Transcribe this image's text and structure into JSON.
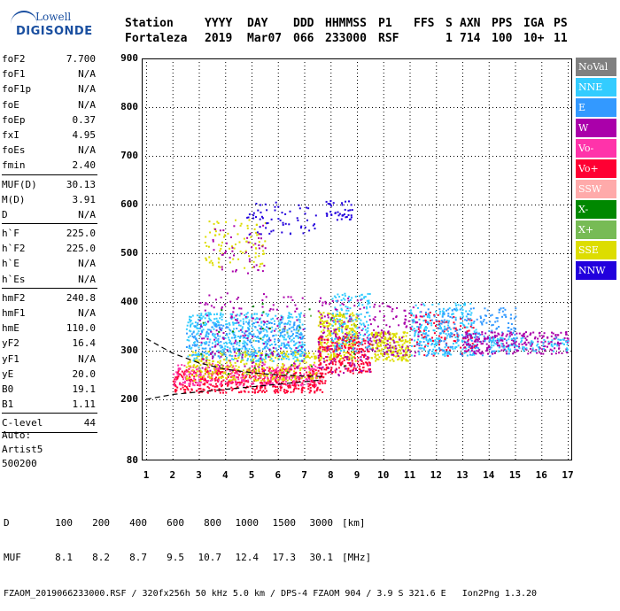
{
  "logo": {
    "top": "Lowell",
    "brand": "DIGISONDE"
  },
  "header": {
    "labels": [
      "Station",
      "YYYY",
      "DAY",
      "DDD",
      "HHMMSS",
      "P1",
      "FFS",
      "S",
      "AXN",
      "PPS",
      "IGA",
      "PS"
    ],
    "values": [
      "Fortaleza",
      "2019",
      "Mar07",
      "066",
      "233000",
      "RSF",
      "",
      "1",
      "714",
      "100",
      "10+",
      "11"
    ]
  },
  "params_group1": [
    {
      "label": "foF2",
      "value": "7.700"
    },
    {
      "label": "foF1",
      "value": "N/A"
    },
    {
      "label": "foF1p",
      "value": "N/A"
    },
    {
      "label": "foE",
      "value": "N/A"
    },
    {
      "label": "foEp",
      "value": "0.37"
    },
    {
      "label": "fxI",
      "value": "4.95"
    },
    {
      "label": "foEs",
      "value": "N/A"
    },
    {
      "label": "fmin",
      "value": "2.40"
    }
  ],
  "params_group2": [
    {
      "label": "MUF(D)",
      "value": "30.13"
    },
    {
      "label": "M(D)",
      "value": "3.91"
    },
    {
      "label": "D",
      "value": "N/A"
    }
  ],
  "params_group3": [
    {
      "label": "h`F",
      "value": "225.0"
    },
    {
      "label": "h`F2",
      "value": "225.0"
    },
    {
      "label": "h`E",
      "value": "N/A"
    },
    {
      "label": "h`Es",
      "value": "N/A"
    }
  ],
  "params_group4": [
    {
      "label": "hmF2",
      "value": "240.8"
    },
    {
      "label": "hmF1",
      "value": "N/A"
    },
    {
      "label": "hmE",
      "value": "110.0"
    },
    {
      "label": "yF2",
      "value": "16.4"
    },
    {
      "label": "yF1",
      "value": "N/A"
    },
    {
      "label": "yE",
      "value": "20.0"
    },
    {
      "label": "B0",
      "value": "19.1"
    },
    {
      "label": "B1",
      "value": "1.11"
    }
  ],
  "clevel": {
    "label": "C-level",
    "value": "44"
  },
  "auto": [
    "Auto:",
    "Artist5",
    "500200"
  ],
  "legend": [
    {
      "name": "NoVal",
      "color": "#808080"
    },
    {
      "name": "NNE",
      "color": "#33ccff"
    },
    {
      "name": "E",
      "color": "#3399ff"
    },
    {
      "name": "W",
      "color": "#aa00aa"
    },
    {
      "name": "Vo-",
      "color": "#ff33aa"
    },
    {
      "name": "Vo+",
      "color": "#ff0033"
    },
    {
      "name": "SSW",
      "color": "#ffaaaa"
    },
    {
      "name": "X-",
      "color": "#008800"
    },
    {
      "name": "X+",
      "color": "#77bb55"
    },
    {
      "name": "SSE",
      "color": "#dddd00"
    },
    {
      "name": "NNW",
      "color": "#2200dd"
    }
  ],
  "chart_data": {
    "type": "scatter",
    "xlim": [
      1,
      17
    ],
    "ylim": [
      80,
      900
    ],
    "x_ticks": [
      "1",
      "2",
      "3",
      "4",
      "5",
      "6",
      "7",
      "8",
      "9",
      "10",
      "11",
      "12",
      "13",
      "14",
      "15",
      "16",
      "17"
    ],
    "y_ticks": [
      "900",
      "800",
      "700",
      "600",
      "500",
      "400",
      "300",
      "200",
      "80"
    ],
    "clusters": [
      {
        "sig": "Vo+",
        "x": [
          2.0,
          7.8
        ],
        "y": [
          215,
          265
        ],
        "n": 520
      },
      {
        "sig": "Vo-",
        "x": [
          2.0,
          7.5
        ],
        "y": [
          230,
          275
        ],
        "n": 260
      },
      {
        "sig": "SSE",
        "x": [
          2.5,
          7.5
        ],
        "y": [
          240,
          300
        ],
        "n": 320
      },
      {
        "sig": "NNE",
        "x": [
          2.5,
          7.0
        ],
        "y": [
          280,
          380
        ],
        "n": 520
      },
      {
        "sig": "E",
        "x": [
          2.5,
          7.0
        ],
        "y": [
          290,
          360
        ],
        "n": 220
      },
      {
        "sig": "W",
        "x": [
          3.0,
          7.0
        ],
        "y": [
          260,
          420
        ],
        "n": 160
      },
      {
        "sig": "SSE",
        "x": [
          3.2,
          5.5
        ],
        "y": [
          470,
          570
        ],
        "n": 90
      },
      {
        "sig": "W",
        "x": [
          3.5,
          5.5
        ],
        "y": [
          460,
          560
        ],
        "n": 45
      },
      {
        "sig": "NNW",
        "x": [
          4.8,
          7.5
        ],
        "y": [
          540,
          610
        ],
        "n": 60
      },
      {
        "sig": "SSE",
        "x": [
          7.5,
          9.0
        ],
        "y": [
          280,
          380
        ],
        "n": 280
      },
      {
        "sig": "Vo+",
        "x": [
          7.5,
          9.5
        ],
        "y": [
          255,
          330
        ],
        "n": 230
      },
      {
        "sig": "W",
        "x": [
          7.5,
          9.5
        ],
        "y": [
          250,
          410
        ],
        "n": 150
      },
      {
        "sig": "NNE",
        "x": [
          8.0,
          9.5
        ],
        "y": [
          300,
          420
        ],
        "n": 140
      },
      {
        "sig": "NNW",
        "x": [
          7.8,
          8.8
        ],
        "y": [
          570,
          610
        ],
        "n": 40
      },
      {
        "sig": "SSE",
        "x": [
          9.5,
          11.0
        ],
        "y": [
          280,
          340
        ],
        "n": 210
      },
      {
        "sig": "W",
        "x": [
          9.5,
          11.5
        ],
        "y": [
          290,
          400
        ],
        "n": 120
      },
      {
        "sig": "NNE",
        "x": [
          11.0,
          13.5
        ],
        "y": [
          290,
          400
        ],
        "n": 260
      },
      {
        "sig": "Vo+",
        "x": [
          11.0,
          13.5
        ],
        "y": [
          290,
          380
        ],
        "n": 90
      },
      {
        "sig": "E",
        "x": [
          11.5,
          15.0
        ],
        "y": [
          290,
          390
        ],
        "n": 200
      },
      {
        "sig": "W",
        "x": [
          13.0,
          17.0
        ],
        "y": [
          295,
          340
        ],
        "n": 260
      },
      {
        "sig": "NNE",
        "x": [
          14.0,
          17.0
        ],
        "y": [
          300,
          330
        ],
        "n": 90
      },
      {
        "sig": "X-",
        "x": [
          3.0,
          9.0
        ],
        "y": [
          250,
          400
        ],
        "n": 25
      },
      {
        "sig": "X+",
        "x": [
          3.0,
          9.0
        ],
        "y": [
          250,
          380
        ],
        "n": 20
      }
    ],
    "profile_curve": {
      "x": [
        1.0,
        2.0,
        3.0,
        4.0,
        5.0,
        6.0,
        7.0,
        7.7
      ],
      "y": [
        325,
        295,
        275,
        262,
        255,
        250,
        248,
        247
      ]
    },
    "baseline_line": {
      "x": [
        1.0,
        2.0,
        7.7
      ],
      "y": [
        200,
        210,
        240
      ]
    }
  },
  "footer": {
    "d_label": "D",
    "d_values": [
      "100",
      "200",
      "400",
      "600",
      "800",
      "1000",
      "1500",
      "3000"
    ],
    "d_unit": "[km]",
    "muf_label": "MUF",
    "muf_values": [
      "8.1",
      "8.2",
      "8.7",
      "9.5",
      "10.7",
      "12.4",
      "17.3",
      "30.1"
    ],
    "muf_unit": "[MHz]",
    "file_line": "FZAOM_2019066233000.RSF / 320fx256h 50 kHz 5.0 km / DPS-4 FZAOM 904 / 3.9 S 321.6 E   Ion2Png 1.3.20"
  }
}
